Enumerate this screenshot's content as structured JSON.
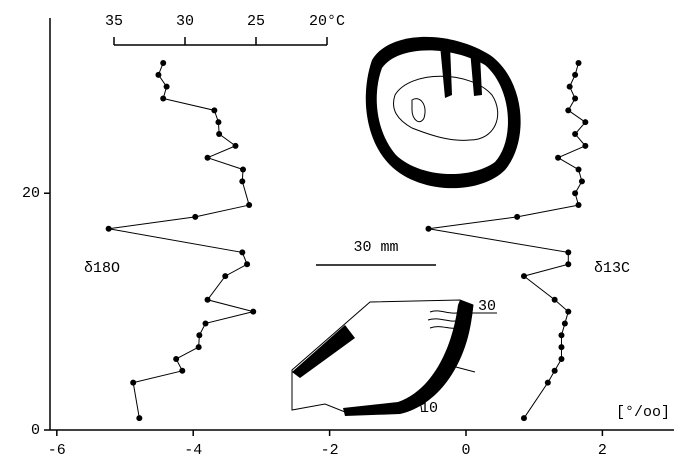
{
  "chart_data": {
    "type": "line",
    "xlim": [
      -6.1,
      3.05
    ],
    "xticks": [
      -6,
      -4,
      -2,
      0,
      2
    ],
    "ylim": [
      0,
      34.8
    ],
    "yticks": [
      0,
      20
    ],
    "x2lim": [
      35,
      20
    ],
    "x2ticks": [
      35,
      30,
      25,
      {
        "value": 20,
        "label": "20°C"
      }
    ],
    "x_unit_label": "[°/oo]",
    "series": [
      {
        "name": "δ18O",
        "color": "#000000",
        "x": [
          -4.44,
          -4.51,
          -4.39,
          -4.44,
          -3.69,
          -3.63,
          -3.62,
          -3.38,
          -3.79,
          -3.27,
          -3.28,
          -3.18,
          -3.97,
          -5.24,
          -3.28,
          -3.21,
          -3.53,
          -3.79,
          -3.12,
          -3.82,
          -3.91,
          -3.92,
          -4.25,
          -4.16,
          -4.88,
          -4.79
        ],
        "values": [
          31,
          30,
          29,
          28,
          27,
          26,
          25,
          24,
          23,
          22,
          21,
          19,
          18,
          17,
          15,
          14,
          13,
          11,
          10,
          9,
          8,
          7,
          6,
          5,
          4,
          1
        ]
      },
      {
        "name": "δ13C",
        "color": "#000000",
        "x": [
          1.65,
          1.6,
          1.52,
          1.6,
          1.5,
          1.75,
          1.6,
          1.75,
          1.35,
          1.65,
          1.7,
          1.6,
          1.65,
          0.75,
          -0.55,
          1.5,
          1.5,
          0.85,
          1.3,
          1.5,
          1.45,
          1.4,
          1.4,
          1.4,
          1.3,
          1.2,
          0.85
        ],
        "values": [
          31,
          30,
          29,
          28,
          27,
          26,
          25,
          24,
          23,
          22,
          21,
          20,
          19,
          18,
          17,
          15,
          14,
          13,
          11,
          10,
          9,
          8,
          7,
          6,
          5,
          4,
          1
        ]
      }
    ],
    "annotations": {
      "scale_bar": "30 mm",
      "growth_upper": "30",
      "growth_lower": "10"
    }
  }
}
